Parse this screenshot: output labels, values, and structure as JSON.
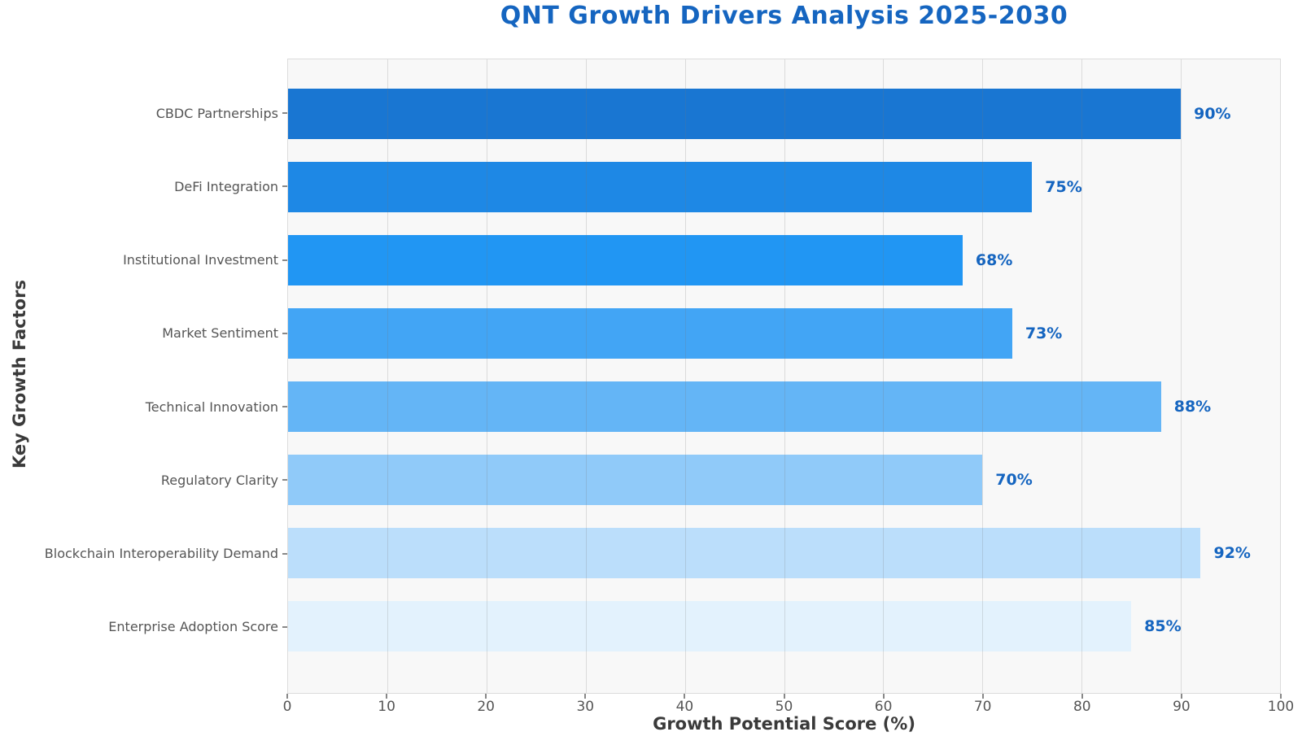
{
  "chart_data": {
    "type": "bar",
    "orientation": "horizontal",
    "title": "QNT Growth Drivers Analysis 2025-2030",
    "xlabel": "Growth Potential Score (%)",
    "ylabel": "Key Growth Factors",
    "categories": [
      "CBDC Partnerships",
      "DeFi Integration",
      "Institutional Investment",
      "Market Sentiment",
      "Technical Innovation",
      "Regulatory Clarity",
      "Blockchain Interoperability Demand",
      "Enterprise Adoption Score"
    ],
    "values": [
      90,
      75,
      68,
      73,
      88,
      70,
      92,
      85
    ],
    "value_labels": [
      "90%",
      "75%",
      "68%",
      "73%",
      "88%",
      "70%",
      "92%",
      "85%"
    ],
    "bar_colors": [
      "#1976d2",
      "#1e88e5",
      "#2196f3",
      "#42a5f5",
      "#64b5f6",
      "#90caf9",
      "#bbdefb",
      "#e3f2fd"
    ],
    "xlim": [
      0,
      100
    ],
    "xticks": [
      0,
      10,
      20,
      30,
      40,
      50,
      60,
      70,
      80,
      90,
      100
    ],
    "grid": true,
    "legend": "none",
    "colors": {
      "title": "#1565c0",
      "value_label": "#1565c0",
      "axis_label": "#3a3a3a",
      "tick_label": "#555555",
      "plot_background": "#f8f8f8",
      "grid_line": "rgba(120,120,120,0.22)"
    }
  }
}
